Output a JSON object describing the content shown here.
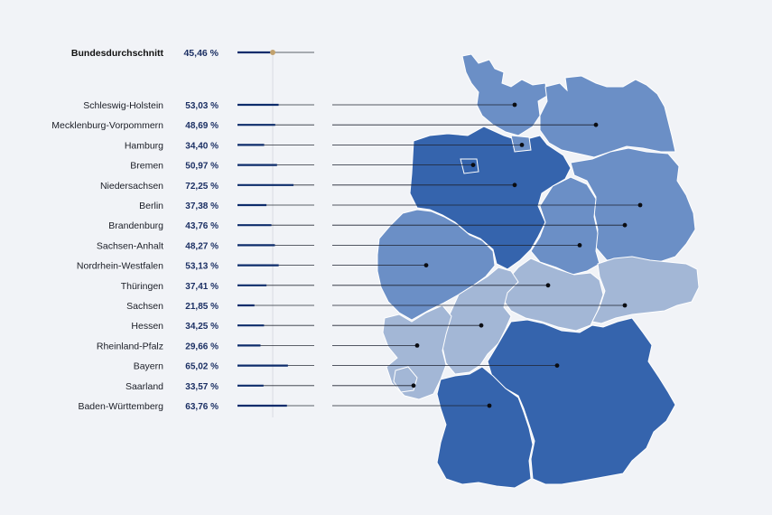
{
  "chart_data": {
    "type": "bar",
    "average": {
      "label": "Bundesdurchschnitt",
      "value": 45.46,
      "display": "45,46 %"
    },
    "categories": [
      "Schleswig-Holstein",
      "Mecklenburg-Vorpommern",
      "Hamburg",
      "Bremen",
      "Niedersachsen",
      "Berlin",
      "Brandenburg",
      "Sachsen-Anhalt",
      "Nordrhein-Westfalen",
      "Thüringen",
      "Sachsen",
      "Hessen",
      "Rheinland-Pfalz",
      "Bayern",
      "Saarland",
      "Baden-Württemberg"
    ],
    "values": [
      53.03,
      48.69,
      34.4,
      50.97,
      72.25,
      37.38,
      43.76,
      48.27,
      53.13,
      37.41,
      21.85,
      34.25,
      29.66,
      65.02,
      33.57,
      63.76
    ],
    "value_labels": [
      "53,03 %",
      "48,69 %",
      "34,40 %",
      "50,97 %",
      "72,25 %",
      "37,38 %",
      "43,76 %",
      "48,27 %",
      "53,13 %",
      "37,41 %",
      "21,85 %",
      "34,25 %",
      "29,66 %",
      "65,02 %",
      "33,57 %",
      "63,76 %"
    ],
    "xlim": [
      0,
      100
    ],
    "colors": {
      "bar": "#0d2c6b",
      "track": "#2a2f3a",
      "average_marker": "#c2a26e",
      "average_line": "#d9dce3",
      "map_high": "#3564ad",
      "map_mid": "#6b8fc6",
      "map_low": "#a3b7d6",
      "map_border": "#ffffff",
      "leader": "#1e2330",
      "background": "#f1f3f7"
    }
  }
}
